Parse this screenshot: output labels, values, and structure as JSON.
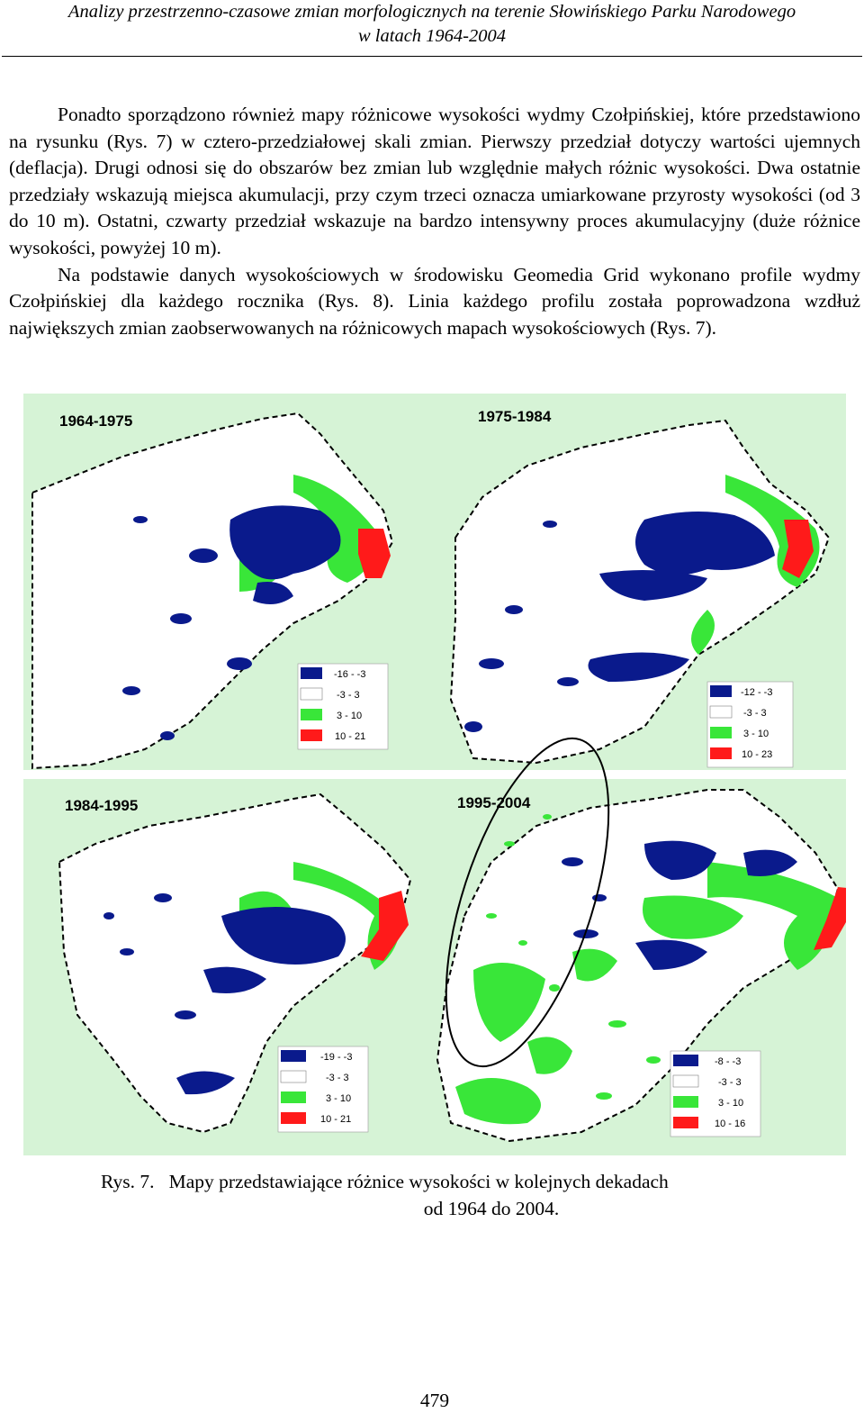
{
  "header": {
    "title_line1": "Analizy przestrzenno-czasowe zmian morfologicznych na terenie Słowińskiego Parku Narodowego",
    "title_line2": "w latach 1964-2004"
  },
  "body": {
    "paragraphs": [
      "Ponadto sporządzono również mapy różnicowe wysokości wydmy Czołpińskiej, które przedstawiono na rysunku (Rys. 7) w cztero-przedziałowej skali zmian. Pierwszy przedział dotyczy wartości ujemnych (deflacja). Drugi odnosi się do obszarów bez zmian lub względnie małych różnic wysokości. Dwa ostatnie przedziały wskazują miejsca akumulacji, przy czym trzeci oznacza umiarkowane przyrosty wysokości (od 3 do 10 m). Ostatni, czwarty przedział wskazuje na bardzo intensywny proces akumulacyjny (duże różnice wysokości, powyżej 10 m).",
      "Na podstawie danych wysokościowych w środowisku Geomedia Grid wykonano profile wydmy Czołpińskiej dla każdego rocznika (Rys. 8). Linia każdego profilu została poprowadzona  wzdłuż największych zmian zaobserwowanych na różnicowych mapach wysokościowych (Rys. 7)."
    ]
  },
  "figure": {
    "colors": {
      "background": "#d6f3d6",
      "deflation": "#0a1a8c",
      "no_change": "#ffffff",
      "moderate_accumulation": "#39e639",
      "intense_accumulation": "#ff1a1a",
      "outline": "#000000"
    },
    "maps": [
      {
        "period": "1964-1975",
        "legend": [
          "-16 - -3",
          "-3 - 3",
          "3 - 10",
          "10 - 21"
        ]
      },
      {
        "period": "1975-1984",
        "legend": [
          "-12 - -3",
          "-3 - 3",
          "3 - 10",
          "10 - 23"
        ]
      },
      {
        "period": "1984-1995",
        "legend": [
          "-19 - -3",
          "-3 - 3",
          "3 - 10",
          "10 - 21"
        ]
      },
      {
        "period": "1995-2004",
        "legend": [
          "-8 - -3",
          "-3 - 3",
          "3 - 10",
          "10 - 16"
        ]
      }
    ]
  },
  "caption": {
    "label": "Rys. 7.",
    "text_line1": "Mapy przedstawiające różnice wysokości w kolejnych dekadach",
    "text_line2": "od 1964 do 2004."
  },
  "page_number": "479"
}
